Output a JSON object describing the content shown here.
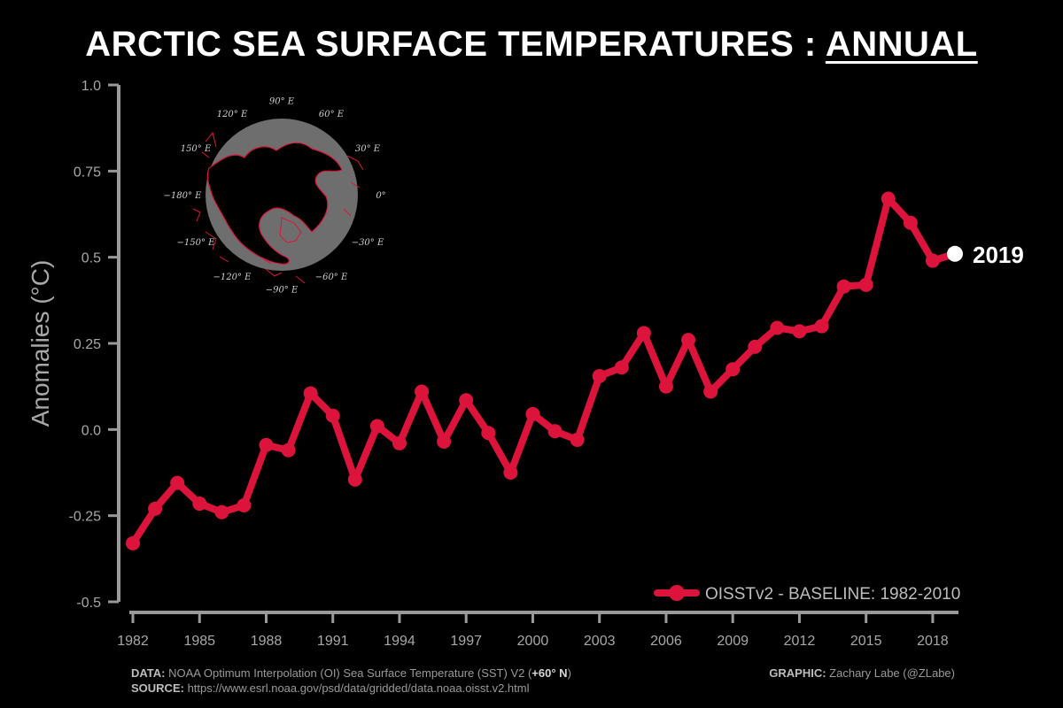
{
  "header": {
    "title_main": "ARCTIC SEA SURFACE TEMPERATURES : ",
    "title_emph": "ANNUAL"
  },
  "chart_data": {
    "type": "line",
    "ylabel": "Anomalies (°C)",
    "ylim": [
      -0.5,
      1.0
    ],
    "y_ticks": [
      -0.5,
      -0.25,
      0.0,
      0.25,
      0.5,
      0.75,
      1.0
    ],
    "y_tick_labels": [
      "-0.5",
      "-0.25",
      "0.0",
      "0.25",
      "0.5",
      "0.75",
      "1.0"
    ],
    "xlim": [
      1982,
      2019
    ],
    "x_ticks": [
      1982,
      1985,
      1988,
      1991,
      1994,
      1997,
      2000,
      2003,
      2006,
      2009,
      2012,
      2015,
      2018
    ],
    "series": [
      {
        "name": "OISSTv2 - BASELINE: 1982-2010",
        "color": "#DC143C",
        "x": [
          1982,
          1983,
          1984,
          1985,
          1986,
          1987,
          1988,
          1989,
          1990,
          1991,
          1992,
          1993,
          1994,
          1995,
          1996,
          1997,
          1998,
          1999,
          2000,
          2001,
          2002,
          2003,
          2004,
          2005,
          2006,
          2007,
          2008,
          2009,
          2010,
          2011,
          2012,
          2013,
          2014,
          2015,
          2016,
          2017,
          2018,
          2019
        ],
        "values": [
          -0.33,
          -0.23,
          -0.155,
          -0.215,
          -0.24,
          -0.22,
          -0.045,
          -0.06,
          0.105,
          0.04,
          -0.145,
          0.01,
          -0.04,
          0.11,
          -0.035,
          0.085,
          -0.01,
          -0.125,
          0.045,
          -0.005,
          -0.03,
          0.155,
          0.18,
          0.28,
          0.125,
          0.26,
          0.11,
          0.175,
          0.24,
          0.295,
          0.285,
          0.3,
          0.415,
          0.42,
          0.67,
          0.6,
          0.49,
          0.51
        ]
      }
    ],
    "highlight": {
      "label": "2019",
      "color": "#FFFFFF"
    },
    "legend_position": "bottom-right",
    "grid": false
  },
  "inset_map": {
    "lon_labels": [
      "90° E",
      "60° E",
      "30° E",
      "0°",
      "−30° E",
      "−60° E",
      "−90° E",
      "−120° E",
      "−150° E",
      "−180° E",
      "150° E",
      "120° E"
    ]
  },
  "footer": {
    "data_label": "DATA:",
    "data_text": "NOAA Optimum Interpolation (OI) Sea Surface Temperature (SST) V2 (",
    "data_emph": "+60° N",
    "data_close": ")",
    "source_label": "SOURCE:",
    "source_text": "https://www.esrl.noaa.gov/psd/data/gridded/data.noaa.oisst.v2.html",
    "graphic_label": "GRAPHIC:",
    "graphic_text": "Zachary Labe (@ZLabe)"
  },
  "colors": {
    "background": "#000000",
    "axis": "#9a9a9a",
    "line": "#DC143C",
    "highlight": "#FFFFFF"
  }
}
